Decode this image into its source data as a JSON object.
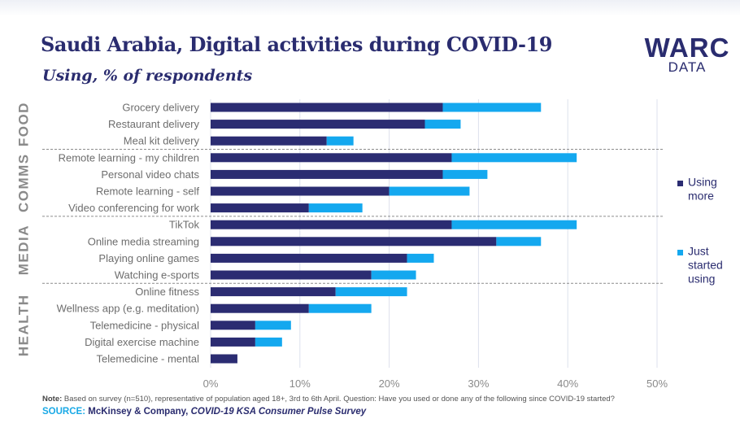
{
  "title": "Saudi Arabia, Digital activities during COVID-19",
  "subtitle": "Using, % of respondents",
  "logo": {
    "main": "WARC",
    "sub": "DATA"
  },
  "note": {
    "label": "Note:",
    "text": "Based on survey (n=510), representative of population aged 18+, 3rd to 6th April. Question: Have you used or done any of the following since COVID-19 started?"
  },
  "source": {
    "label": "SOURCE:",
    "org": "McKinsey & Company,",
    "title": "COVID-19 KSA Consumer Pulse Survey"
  },
  "chart_data": {
    "type": "bar",
    "orientation": "horizontal",
    "stacked": true,
    "title": "Saudi Arabia, Digital activities during COVID-19",
    "subtitle": "Using, % of respondents",
    "categories": [
      "Grocery delivery",
      "Restaurant delivery",
      "Meal kit delivery",
      "Remote learning - my children",
      "Personal video chats",
      "Remote learning - self",
      "Video conferencing for work",
      "TikTok",
      "Online media streaming",
      "Playing online games",
      "Watching e-sports",
      "Online fitness",
      "Wellness app (e.g. meditation)",
      "Telemedicine - physical",
      "Digital exercise machine",
      "Telemedicine - mental"
    ],
    "groups": [
      {
        "name": "FOOD",
        "count": 3
      },
      {
        "name": "COMMS",
        "count": 4
      },
      {
        "name": "MEDIA",
        "count": 4
      },
      {
        "name": "HEALTH",
        "count": 5
      }
    ],
    "series": [
      {
        "name": "Using more",
        "color": "#2b2c72",
        "values": [
          26,
          24,
          13,
          27,
          26,
          20,
          11,
          27,
          32,
          22,
          18,
          14,
          11,
          5,
          5,
          3
        ]
      },
      {
        "name": "Just started using",
        "color": "#14a8ef",
        "values": [
          11,
          4,
          3,
          14,
          5,
          9,
          6,
          14,
          5,
          3,
          5,
          8,
          7,
          4,
          3,
          0
        ]
      }
    ],
    "legend": [
      {
        "label": "Using more",
        "color": "#2b2c72"
      },
      {
        "label": "Just started using",
        "color": "#14a8ef"
      }
    ],
    "legend_position": "right",
    "xlim": [
      0,
      50
    ],
    "xticks": [
      "0%",
      "10%",
      "20%",
      "30%",
      "40%",
      "50%"
    ],
    "grid": true
  }
}
